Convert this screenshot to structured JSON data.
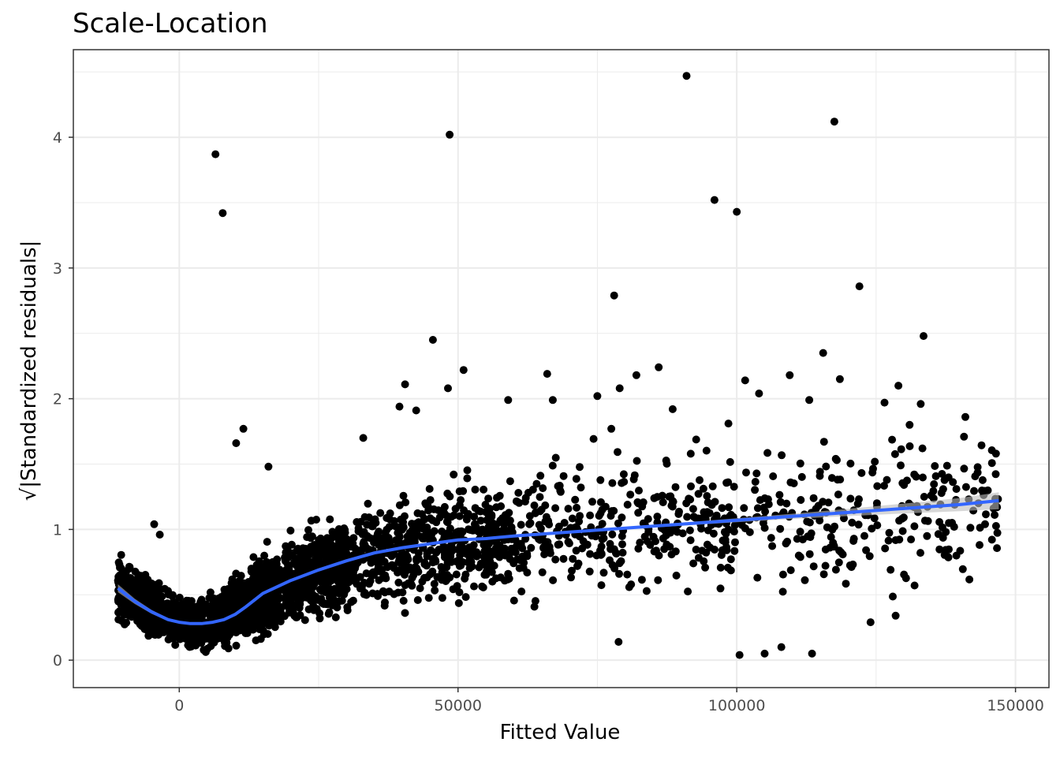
{
  "chart_data": {
    "type": "scatter",
    "title": "Scale-Location",
    "xlabel": "Fitted Value",
    "ylabel": "√|Standardized residuals|",
    "xlim": [
      -19000,
      156000
    ],
    "ylim": [
      -0.21,
      4.67
    ],
    "x_ticks": [
      0,
      50000,
      100000,
      150000
    ],
    "x_tick_labels": [
      "0",
      "50000",
      "100000",
      "150000"
    ],
    "y_ticks": [
      0,
      1,
      2,
      3,
      4
    ],
    "y_tick_labels": [
      "0",
      "1",
      "2",
      "3",
      "4"
    ],
    "grid": true,
    "legend": "none",
    "colors": {
      "points": "#000000",
      "smooth": "#3366FF",
      "band": "#bdbdbd",
      "grid": "#ebebeb",
      "panel_border": "#333333"
    },
    "outliers": [
      {
        "x": 6500,
        "y": 3.87
      },
      {
        "x": 7800,
        "y": 3.42
      },
      {
        "x": 48500,
        "y": 4.02
      },
      {
        "x": 91000,
        "y": 4.47
      },
      {
        "x": 117500,
        "y": 4.12
      },
      {
        "x": 96000,
        "y": 3.52
      },
      {
        "x": 100000,
        "y": 3.43
      },
      {
        "x": 78000,
        "y": 2.79
      },
      {
        "x": 122000,
        "y": 2.86
      },
      {
        "x": 45500,
        "y": 2.45
      },
      {
        "x": 133500,
        "y": 2.48
      },
      {
        "x": 115500,
        "y": 2.35
      },
      {
        "x": 51000,
        "y": 2.22
      },
      {
        "x": 86000,
        "y": 2.24
      },
      {
        "x": 40500,
        "y": 2.11
      },
      {
        "x": 48200,
        "y": 2.08
      },
      {
        "x": 66000,
        "y": 2.19
      },
      {
        "x": 82000,
        "y": 2.18
      },
      {
        "x": 101500,
        "y": 2.14
      },
      {
        "x": 109500,
        "y": 2.18
      },
      {
        "x": 118500,
        "y": 2.15
      },
      {
        "x": 129000,
        "y": 2.1
      },
      {
        "x": 141000,
        "y": 1.86
      },
      {
        "x": 133000,
        "y": 1.96
      },
      {
        "x": 126500,
        "y": 1.97
      },
      {
        "x": 146500,
        "y": 1.58
      },
      {
        "x": 11500,
        "y": 1.77
      },
      {
        "x": 10200,
        "y": 1.66
      },
      {
        "x": 16000,
        "y": 1.48
      },
      {
        "x": 33000,
        "y": 1.7
      },
      {
        "x": 39500,
        "y": 1.94
      },
      {
        "x": 42500,
        "y": 1.91
      },
      {
        "x": 75000,
        "y": 2.02
      },
      {
        "x": 79000,
        "y": 2.08
      },
      {
        "x": 88500,
        "y": 1.92
      },
      {
        "x": 104000,
        "y": 2.04
      },
      {
        "x": 113000,
        "y": 1.99
      },
      {
        "x": 131000,
        "y": 1.8
      },
      {
        "x": 98500,
        "y": 1.81
      },
      {
        "x": 77500,
        "y": 1.77
      },
      {
        "x": 67000,
        "y": 1.99
      },
      {
        "x": 59000,
        "y": 1.99
      },
      {
        "x": -4500,
        "y": 1.04
      },
      {
        "x": -3500,
        "y": 0.96
      },
      {
        "x": 78800,
        "y": 0.14
      },
      {
        "x": 100500,
        "y": 0.04
      },
      {
        "x": 105000,
        "y": 0.05
      },
      {
        "x": 113500,
        "y": 0.05
      },
      {
        "x": 108000,
        "y": 0.1
      },
      {
        "x": 146500,
        "y": 1.18
      },
      {
        "x": 139000,
        "y": 1.02
      },
      {
        "x": 137500,
        "y": 0.98
      },
      {
        "x": 124000,
        "y": 0.29
      },
      {
        "x": 128500,
        "y": 0.34
      }
    ],
    "bulk_trend": {
      "x": [
        -11000,
        -7000,
        -3000,
        0,
        3000,
        6000,
        9000,
        12000,
        16000,
        20000,
        25000,
        30000,
        35000,
        40000,
        45000,
        50000,
        60000,
        70000,
        80000,
        90000,
        100000,
        110000,
        120000,
        130000,
        140000,
        147000
      ],
      "y": [
        0.55,
        0.44,
        0.34,
        0.29,
        0.28,
        0.3,
        0.36,
        0.44,
        0.53,
        0.6,
        0.67,
        0.74,
        0.8,
        0.85,
        0.89,
        0.91,
        0.94,
        0.97,
        1.01,
        1.04,
        1.07,
        1.1,
        1.13,
        1.16,
        1.19,
        1.22
      ]
    },
    "smooth": {
      "x": [
        -11000,
        -8000,
        -5000,
        -2000,
        0,
        2000,
        4000,
        6000,
        8000,
        10000,
        12000,
        15000,
        20000,
        25000,
        30000,
        35000,
        40000,
        45000,
        50000,
        55000,
        60000,
        70000,
        80000,
        90000,
        100000,
        110000,
        120000,
        130000,
        140000,
        147000
      ],
      "y": [
        0.55,
        0.45,
        0.37,
        0.31,
        0.29,
        0.28,
        0.28,
        0.29,
        0.31,
        0.35,
        0.41,
        0.51,
        0.61,
        0.69,
        0.76,
        0.82,
        0.86,
        0.89,
        0.92,
        0.93,
        0.95,
        0.98,
        1.01,
        1.04,
        1.07,
        1.1,
        1.13,
        1.16,
        1.19,
        1.22
      ],
      "band": [
        0.03,
        0.02,
        0.015,
        0.01,
        0.01,
        0.01,
        0.01,
        0.01,
        0.01,
        0.01,
        0.01,
        0.01,
        0.01,
        0.01,
        0.01,
        0.01,
        0.01,
        0.01,
        0.01,
        0.01,
        0.01,
        0.01,
        0.01,
        0.012,
        0.015,
        0.02,
        0.028,
        0.038,
        0.05,
        0.065
      ]
    }
  }
}
